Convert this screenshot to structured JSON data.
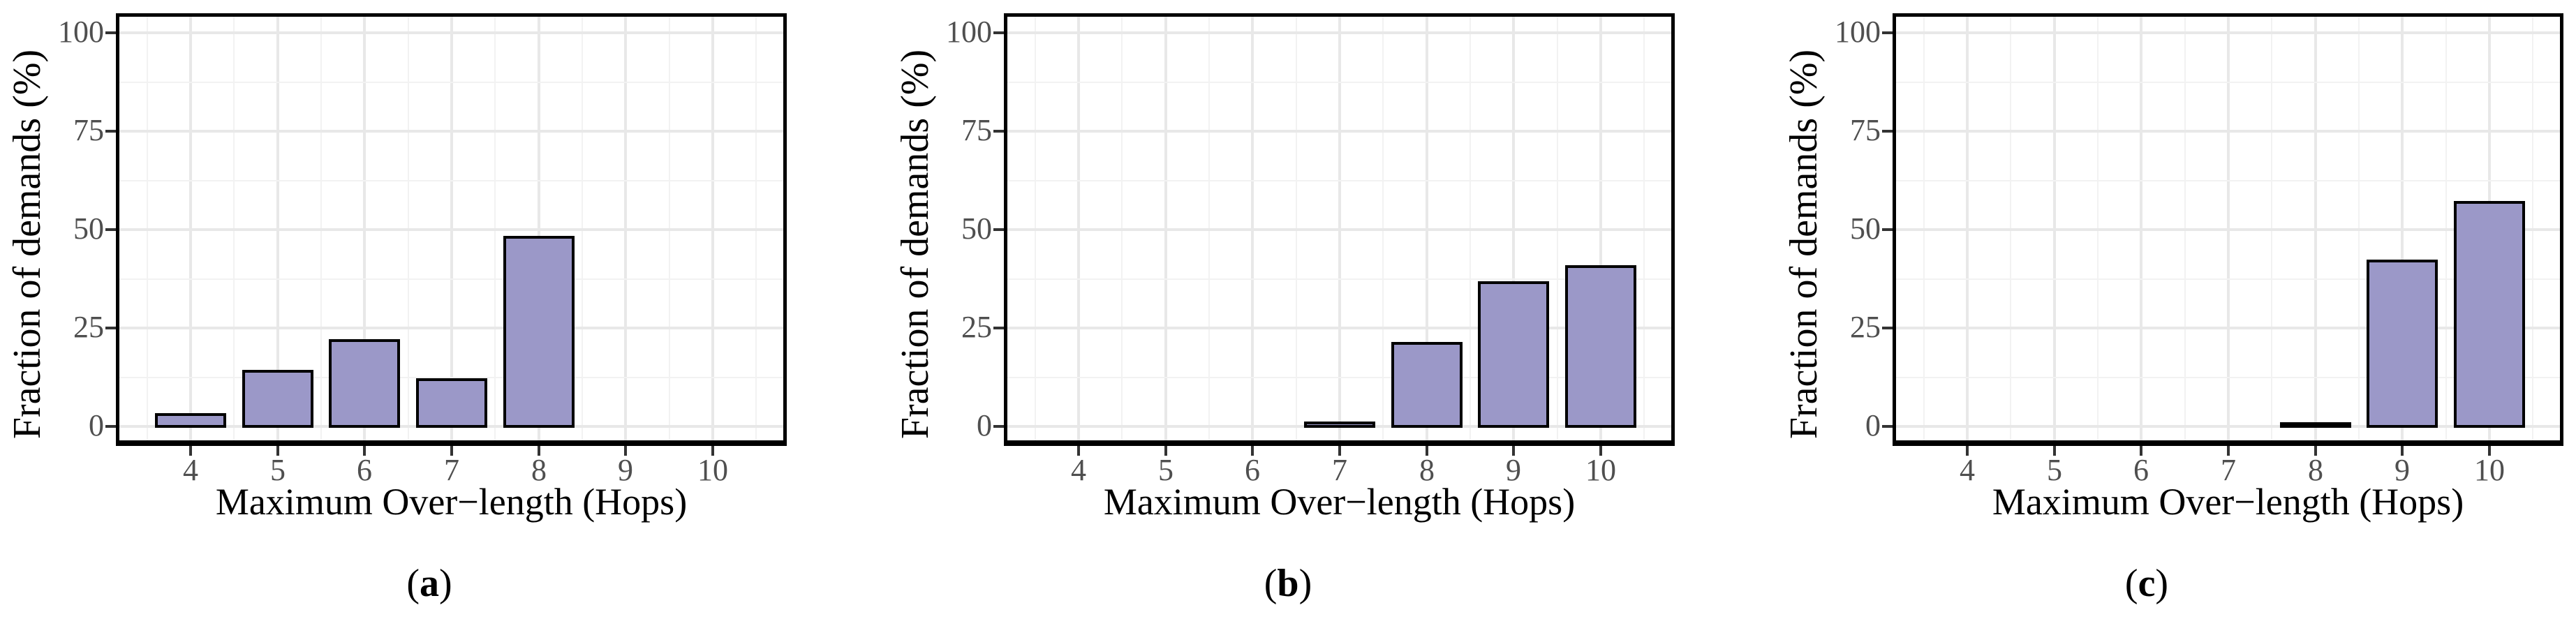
{
  "figure": {
    "description": "Three bar-chart subfigures showing distribution of demand over-length in hops",
    "background": "#ffffff"
  },
  "colors": {
    "bar_fill": "#9b98c8",
    "bar_stroke": "#000000",
    "grid_major": "#e8e8e8",
    "grid_minor": "#f2f2f2",
    "panel_border": "#000000",
    "tick_mark": "#333333",
    "tick_label": "#4f4f4f",
    "axis_title": "#000000"
  },
  "chart_data": [
    {
      "type": "bar",
      "id": "a",
      "caption": "a",
      "title": "",
      "xlabel": "Maximum Over−length (Hops)",
      "ylabel": "Fraction of demands (%)",
      "categories": [
        "4",
        "5",
        "6",
        "7",
        "8",
        "9",
        "10"
      ],
      "values": [
        3.4,
        14.4,
        22.2,
        12.3,
        48.4,
        null,
        null
      ],
      "ylim": [
        0,
        100
      ],
      "yticks": [
        "0",
        "25",
        "50",
        "75",
        "100"
      ],
      "grid": "major+minor",
      "legend": "none"
    },
    {
      "type": "bar",
      "id": "b",
      "caption": "b",
      "title": "",
      "xlabel": "Maximum Over−length (Hops)",
      "ylabel": "Fraction of demands (%)",
      "categories": [
        "4",
        "5",
        "6",
        "7",
        "8",
        "9",
        "10"
      ],
      "values": [
        null,
        null,
        null,
        1.2,
        21.5,
        36.9,
        41.0
      ],
      "ylim": [
        0,
        100
      ],
      "yticks": [
        "0",
        "25",
        "50",
        "75",
        "100"
      ],
      "grid": "major+minor",
      "legend": "none"
    },
    {
      "type": "bar",
      "id": "c",
      "caption": "c",
      "title": "",
      "xlabel": "Maximum Over−length (Hops)",
      "ylabel": "Fraction of demands (%)",
      "categories": [
        "4",
        "5",
        "6",
        "7",
        "8",
        "9",
        "10"
      ],
      "values": [
        null,
        null,
        null,
        null,
        0.5,
        42.4,
        57.2
      ],
      "ylim": [
        0,
        100
      ],
      "yticks": [
        "0",
        "25",
        "50",
        "75",
        "100"
      ],
      "grid": "major+minor",
      "legend": "none"
    }
  ]
}
